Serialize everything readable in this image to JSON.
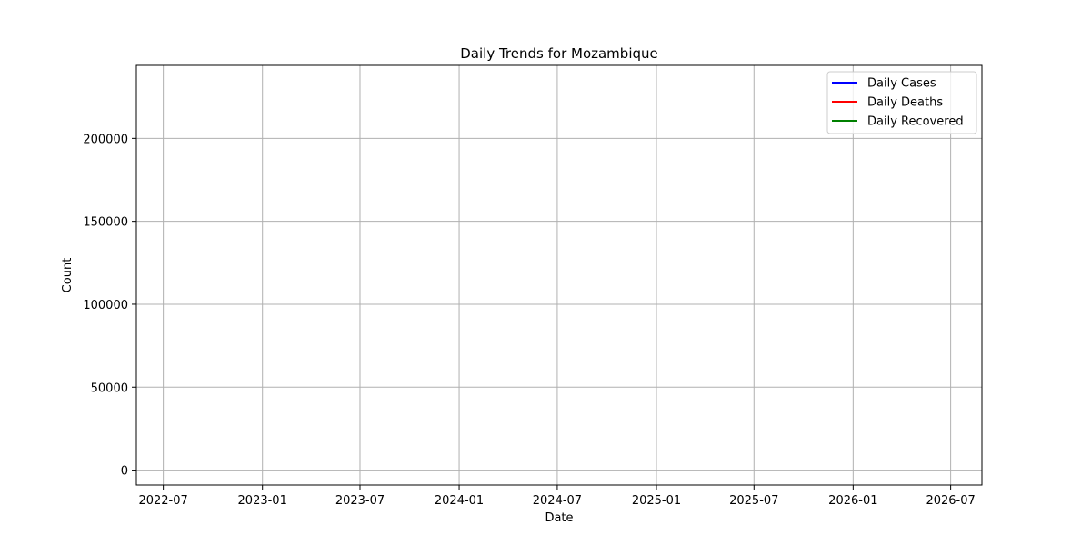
{
  "chart_data": {
    "type": "line",
    "title": "Daily Trends for Mozambique",
    "xlabel": "Date",
    "ylabel": "Count",
    "x_ticks": [
      "2022-07",
      "2023-01",
      "2023-07",
      "2024-01",
      "2024-07",
      "2025-01",
      "2025-07",
      "2026-01",
      "2026-07"
    ],
    "y_ticks": [
      0,
      50000,
      100000,
      150000,
      200000
    ],
    "xlim": [
      "2022-05-12",
      "2026-08-28"
    ],
    "ylim": [
      -9000,
      244000
    ],
    "grid": true,
    "legend_position": "top-right",
    "series": [
      {
        "name": "Daily Cases",
        "color": "#0000ff",
        "x": [],
        "values": []
      },
      {
        "name": "Daily Deaths",
        "color": "#ff0000",
        "x": [],
        "values": []
      },
      {
        "name": "Daily Recovered",
        "color": "#008000",
        "x": [],
        "values": []
      }
    ]
  }
}
